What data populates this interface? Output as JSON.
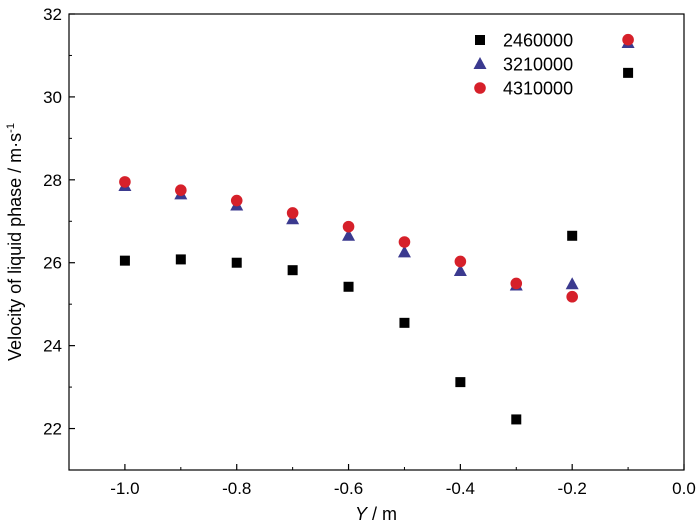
{
  "chart_data": {
    "type": "scatter",
    "title": "",
    "xlabel": "Y / m",
    "xlabel_italic": "Y",
    "xlabel_unit": " / m",
    "ylabel": "Velocity of liquid phase / m·s⁻¹",
    "ylabel_main": "Velocity of liquid phase / m·s",
    "ylabel_sup": "-1",
    "xlim": [
      -1.1,
      0.0
    ],
    "ylim": [
      21.0,
      32.0
    ],
    "xticks": [
      -1.0,
      -0.8,
      -0.6,
      -0.4,
      -0.2,
      0.0
    ],
    "xtick_labels": [
      "-1.0",
      "-0.8",
      "-0.6",
      "-0.4",
      "-0.2",
      "0.0"
    ],
    "yticks": [
      22,
      24,
      26,
      28,
      30,
      32
    ],
    "ytick_labels": [
      "22",
      "24",
      "26",
      "28",
      "30",
      "32"
    ],
    "grid": false,
    "legend_position": "top-right",
    "series": [
      {
        "name": "2460000",
        "marker": "square",
        "color": "#000000",
        "x": [
          -1.0,
          -0.9,
          -0.8,
          -0.7,
          -0.6,
          -0.5,
          -0.4,
          -0.3,
          -0.2,
          -0.1
        ],
        "y": [
          26.05,
          26.08,
          26.0,
          25.82,
          25.42,
          24.55,
          23.12,
          22.22,
          26.65,
          30.58
        ]
      },
      {
        "name": "3210000",
        "marker": "triangle",
        "color": "#3b3a8f",
        "x": [
          -1.0,
          -0.9,
          -0.8,
          -0.7,
          -0.6,
          -0.5,
          -0.4,
          -0.3,
          -0.2,
          -0.1
        ],
        "y": [
          27.85,
          27.65,
          27.38,
          27.05,
          26.65,
          26.25,
          25.8,
          25.45,
          25.48,
          31.3
        ]
      },
      {
        "name": "4310000",
        "marker": "circle",
        "color": "#d6202a",
        "x": [
          -1.0,
          -0.9,
          -0.8,
          -0.7,
          -0.6,
          -0.5,
          -0.4,
          -0.3,
          -0.2,
          -0.1
        ],
        "y": [
          27.95,
          27.75,
          27.5,
          27.2,
          26.87,
          26.5,
          26.03,
          25.5,
          25.18,
          31.38
        ]
      }
    ]
  }
}
